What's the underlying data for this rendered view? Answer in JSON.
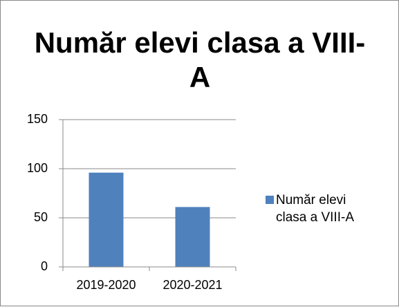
{
  "chart_data": {
    "type": "bar",
    "title": "Număr elevi clasa a VIII-A",
    "categories": [
      "2019-2020",
      "2020-2021"
    ],
    "series": [
      {
        "name": "Număr elevi clasa a VIII-A",
        "color": "#4f81bd",
        "values": [
          96,
          61
        ]
      }
    ],
    "ylim": [
      0,
      150
    ],
    "yticks": [
      0,
      50,
      100,
      150
    ],
    "grid": true,
    "legend": "right"
  }
}
